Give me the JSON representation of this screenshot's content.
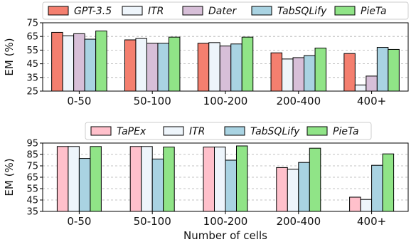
{
  "chart_data": [
    {
      "type": "bar",
      "categories": [
        "0-50",
        "50-100",
        "100-200",
        "200-400",
        "400+"
      ],
      "ylabel": "EM (%)",
      "xlabel": "",
      "ylim": [
        25,
        75
      ],
      "yticks": [
        25,
        35,
        45,
        55,
        65,
        75
      ],
      "grid": true,
      "legend_position": "top",
      "series": [
        {
          "name": "GPT-3.5",
          "color": "#f47f6f",
          "values": [
            68,
            62.5,
            60,
            53,
            52.5
          ]
        },
        {
          "name": "ITR",
          "color": "#eef5fb",
          "values": [
            65.5,
            63.5,
            60.5,
            48.5,
            29.5
          ]
        },
        {
          "name": "Dater",
          "color": "#d7bfd8",
          "values": [
            67,
            60,
            58,
            49.5,
            36
          ]
        },
        {
          "name": "TabSQLify",
          "color": "#a9d3e2",
          "values": [
            63,
            60,
            59.5,
            51,
            57
          ]
        },
        {
          "name": "PieTa",
          "color": "#90e487",
          "values": [
            69,
            64.5,
            64.5,
            56.5,
            55.5
          ]
        }
      ]
    },
    {
      "type": "bar",
      "categories": [
        "0-50",
        "50-100",
        "100-200",
        "200-400",
        "400+"
      ],
      "ylabel": "EM (%)",
      "xlabel": "Number of cells",
      "ylim": [
        35,
        95
      ],
      "yticks": [
        35,
        45,
        55,
        65,
        75,
        85,
        95
      ],
      "grid": true,
      "legend_position": "top",
      "series": [
        {
          "name": "TaPEx",
          "color": "#ffc0cb",
          "values": [
            92,
            92,
            91.5,
            73.5,
            47.5
          ]
        },
        {
          "name": "ITR",
          "color": "#eef5fb",
          "values": [
            92,
            92,
            91.5,
            72,
            45.5
          ]
        },
        {
          "name": "TabSQLify",
          "color": "#a9d3e2",
          "values": [
            81.5,
            81,
            80,
            78,
            75.5
          ]
        },
        {
          "name": "PieTa",
          "color": "#90e487",
          "values": [
            92,
            91.5,
            92.5,
            90.5,
            85.5
          ]
        }
      ]
    }
  ]
}
